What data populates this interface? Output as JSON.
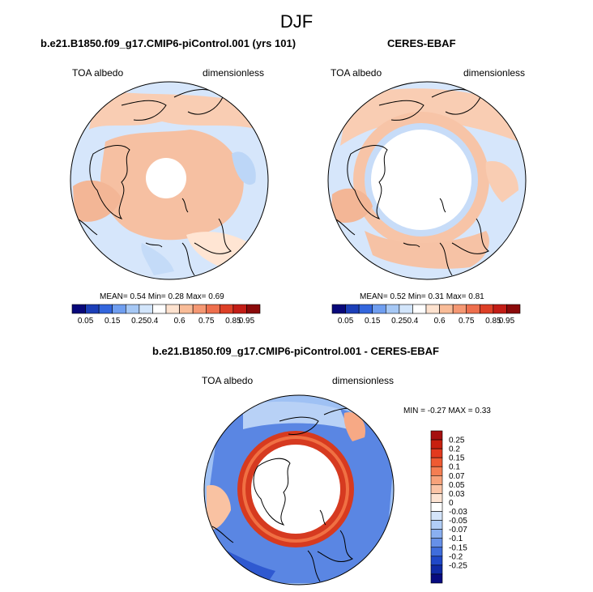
{
  "figure_title": "DJF",
  "panels": [
    {
      "title": "b.e21.B1850.f09_g17.CMIP6-piControl.001 (yrs 101)",
      "left_label": "TOA albedo",
      "right_label": "dimensionless",
      "stats": {
        "mean_label": "MEAN=",
        "mean": "0.54",
        "min_label": "Min=",
        "min": "0.28",
        "max_label": "Max=",
        "max": "0.69"
      }
    },
    {
      "title": "CERES-EBAF",
      "left_label": "TOA albedo",
      "right_label": "dimensionless",
      "stats": {
        "mean_label": "MEAN=",
        "mean": "0.52",
        "min_label": "Min=",
        "min": "0.31",
        "max_label": "Max=",
        "max": "0.81"
      }
    },
    {
      "title": "b.e21.B1850.f09_g17.CMIP6-piControl.001 - CERES-EBAF",
      "left_label": "TOA albedo",
      "right_label": "dimensionless",
      "stats": {
        "min_label": "MIN =",
        "min": "-0.27",
        "max_label": "MAX =",
        "max": "0.33"
      }
    }
  ],
  "albedo_colorbar": {
    "labels": [
      "0.05",
      "0.15",
      "0.25",
      "0.4",
      "0.6",
      "0.75",
      "0.85",
      "0.95"
    ],
    "colors": [
      "#08087a",
      "#1c3fb8",
      "#3366dd",
      "#6f9ef0",
      "#a6c8f5",
      "#d2e5fb",
      "#ffffff",
      "#fde2cf",
      "#f9bc98",
      "#f59873",
      "#ee6f4d",
      "#dd4027",
      "#c31d16",
      "#8b0a0a"
    ]
  },
  "diff_colorbar": {
    "labels": [
      "0.25",
      "0.2",
      "0.15",
      "0.1",
      "0.07",
      "0.05",
      "0.03",
      "0",
      "-0.03",
      "-0.05",
      "-0.07",
      "-0.1",
      "-0.15",
      "-0.2",
      "-0.25"
    ],
    "colors": [
      "#a50f0f",
      "#c8200f",
      "#e23a1e",
      "#ef5a32",
      "#f57e52",
      "#f8a27a",
      "#fbc4a6",
      "#fde3d2",
      "#ffffff",
      "#d4e4fa",
      "#b1cdf6",
      "#8aaff0",
      "#6690e8",
      "#3f6ddc",
      "#1f48c8",
      "#0f2aa6",
      "#070a80"
    ]
  }
}
